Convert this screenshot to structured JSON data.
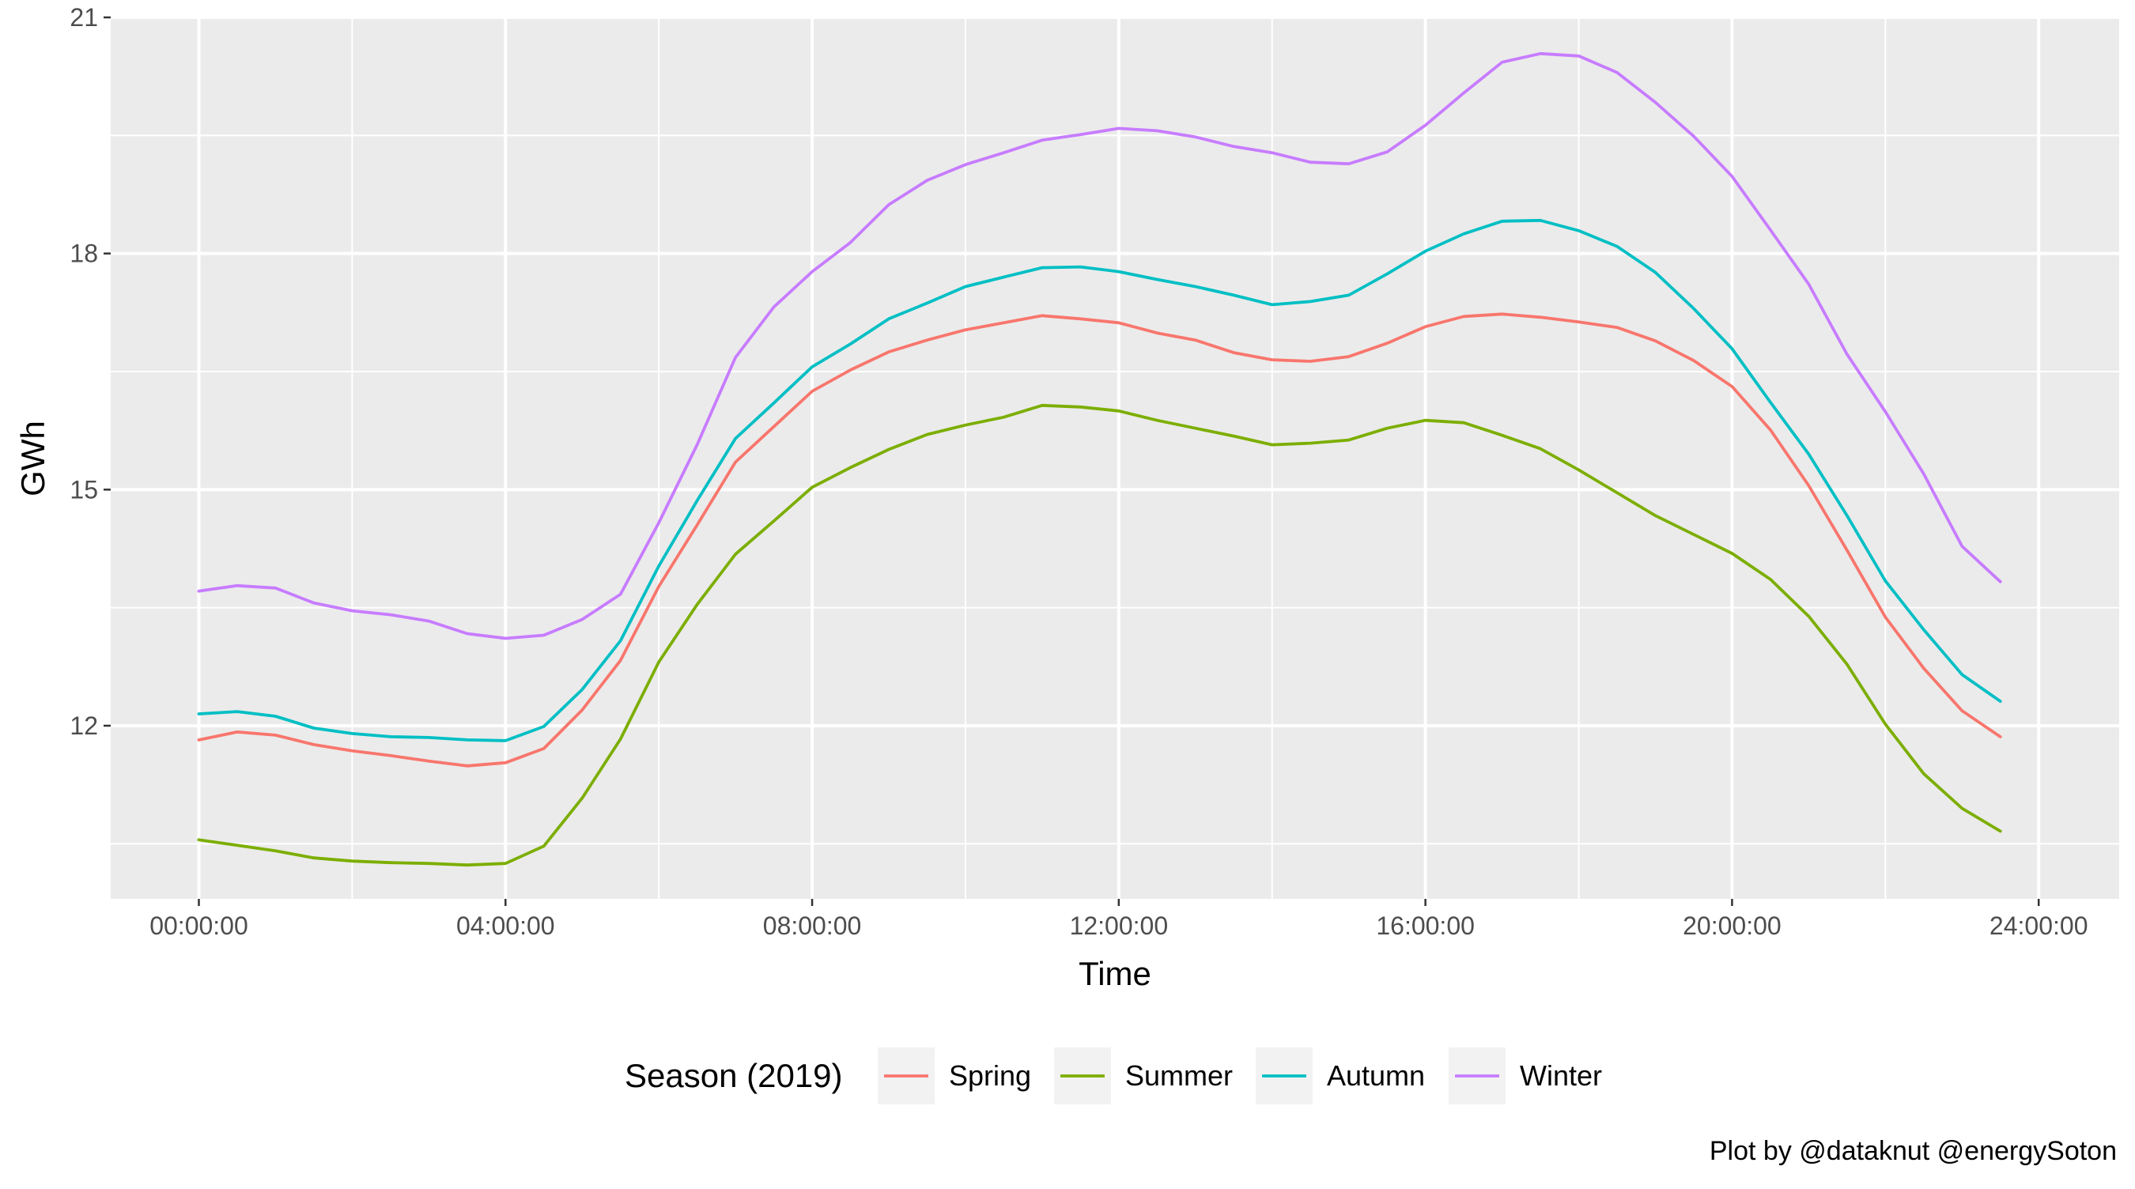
{
  "chart_data": {
    "type": "line",
    "title": "",
    "xlabel": "Time",
    "ylabel": "GWh",
    "ylim": [
      9.8,
      21
    ],
    "xlim_hours": [
      -1.15,
      25.05
    ],
    "y_major_ticks": [
      12,
      15,
      18,
      21
    ],
    "y_minor_gridlines": [
      10.5,
      13.5,
      16.5,
      19.5
    ],
    "x_tick_hours": [
      0,
      4,
      8,
      12,
      16,
      20,
      24
    ],
    "x_tick_labels": [
      "00:00:00",
      "04:00:00",
      "08:00:00",
      "12:00:00",
      "16:00:00",
      "20:00:00",
      "24:00:00"
    ],
    "x_minor_gridline_hours": [
      2,
      6,
      10,
      14,
      18,
      22
    ],
    "grid": true,
    "legend": {
      "title": "Season (2019)",
      "position": "bottom"
    },
    "caption": "Plot by @dataknut @energySoton",
    "x": [
      "00:00:00",
      "00:30:00",
      "01:00:00",
      "01:30:00",
      "02:00:00",
      "02:30:00",
      "03:00:00",
      "03:30:00",
      "04:00:00",
      "04:30:00",
      "05:00:00",
      "05:30:00",
      "06:00:00",
      "06:30:00",
      "07:00:00",
      "07:30:00",
      "08:00:00",
      "08:30:00",
      "09:00:00",
      "09:30:00",
      "10:00:00",
      "10:30:00",
      "11:00:00",
      "11:30:00",
      "12:00:00",
      "12:30:00",
      "13:00:00",
      "13:30:00",
      "14:00:00",
      "14:30:00",
      "15:00:00",
      "15:30:00",
      "16:00:00",
      "16:30:00",
      "17:00:00",
      "17:30:00",
      "18:00:00",
      "18:30:00",
      "19:00:00",
      "19:30:00",
      "20:00:00",
      "20:30:00",
      "21:00:00",
      "21:30:00",
      "22:00:00",
      "22:30:00",
      "23:00:00",
      "23:30:00"
    ],
    "series": [
      {
        "name": "Spring",
        "color": "#F8766D",
        "values": [
          11.82,
          11.92,
          11.88,
          11.76,
          11.68,
          11.62,
          11.55,
          11.49,
          11.53,
          11.71,
          12.2,
          12.83,
          13.77,
          14.55,
          15.35,
          15.8,
          16.25,
          16.52,
          16.75,
          16.9,
          17.03,
          17.12,
          17.21,
          17.17,
          17.12,
          16.99,
          16.9,
          16.74,
          16.65,
          16.63,
          16.69,
          16.86,
          17.07,
          17.2,
          17.23,
          17.19,
          17.13,
          17.06,
          16.89,
          16.64,
          16.31,
          15.76,
          15.05,
          14.23,
          13.38,
          12.73,
          12.19,
          11.86
        ]
      },
      {
        "name": "Summer",
        "color": "#7CAE00",
        "values": [
          10.55,
          10.48,
          10.41,
          10.32,
          10.28,
          10.26,
          10.25,
          10.23,
          10.25,
          10.47,
          11.08,
          11.83,
          12.81,
          13.54,
          14.18,
          14.6,
          15.03,
          15.28,
          15.51,
          15.7,
          15.82,
          15.92,
          16.07,
          16.05,
          16.0,
          15.88,
          15.78,
          15.68,
          15.57,
          15.59,
          15.63,
          15.78,
          15.88,
          15.85,
          15.69,
          15.52,
          15.25,
          14.96,
          14.67,
          14.43,
          14.19,
          13.86,
          13.39,
          12.78,
          12.02,
          11.39,
          10.95,
          10.66
        ]
      },
      {
        "name": "Autumn",
        "color": "#00BFC4",
        "values": [
          12.15,
          12.18,
          12.12,
          11.97,
          11.9,
          11.86,
          11.85,
          11.82,
          11.81,
          11.99,
          12.46,
          13.08,
          14.03,
          14.86,
          15.65,
          16.1,
          16.56,
          16.85,
          17.17,
          17.37,
          17.58,
          17.7,
          17.82,
          17.83,
          17.77,
          17.67,
          17.58,
          17.47,
          17.35,
          17.39,
          17.47,
          17.74,
          18.03,
          18.25,
          18.41,
          18.42,
          18.29,
          18.09,
          17.76,
          17.3,
          16.79,
          16.11,
          15.45,
          14.67,
          13.84,
          13.22,
          12.65,
          12.31
        ]
      },
      {
        "name": "Winter",
        "color": "#C77CFF",
        "values": [
          13.71,
          13.78,
          13.75,
          13.56,
          13.46,
          13.41,
          13.33,
          13.17,
          13.11,
          13.15,
          13.35,
          13.67,
          14.58,
          15.57,
          16.68,
          17.32,
          17.77,
          18.14,
          18.62,
          18.93,
          19.13,
          19.28,
          19.44,
          19.51,
          19.59,
          19.56,
          19.48,
          19.36,
          19.28,
          19.16,
          19.14,
          19.29,
          19.63,
          20.04,
          20.43,
          20.54,
          20.51,
          20.3,
          19.92,
          19.49,
          18.98,
          18.3,
          17.61,
          16.72,
          15.99,
          15.2,
          14.28,
          13.83
        ]
      }
    ]
  }
}
